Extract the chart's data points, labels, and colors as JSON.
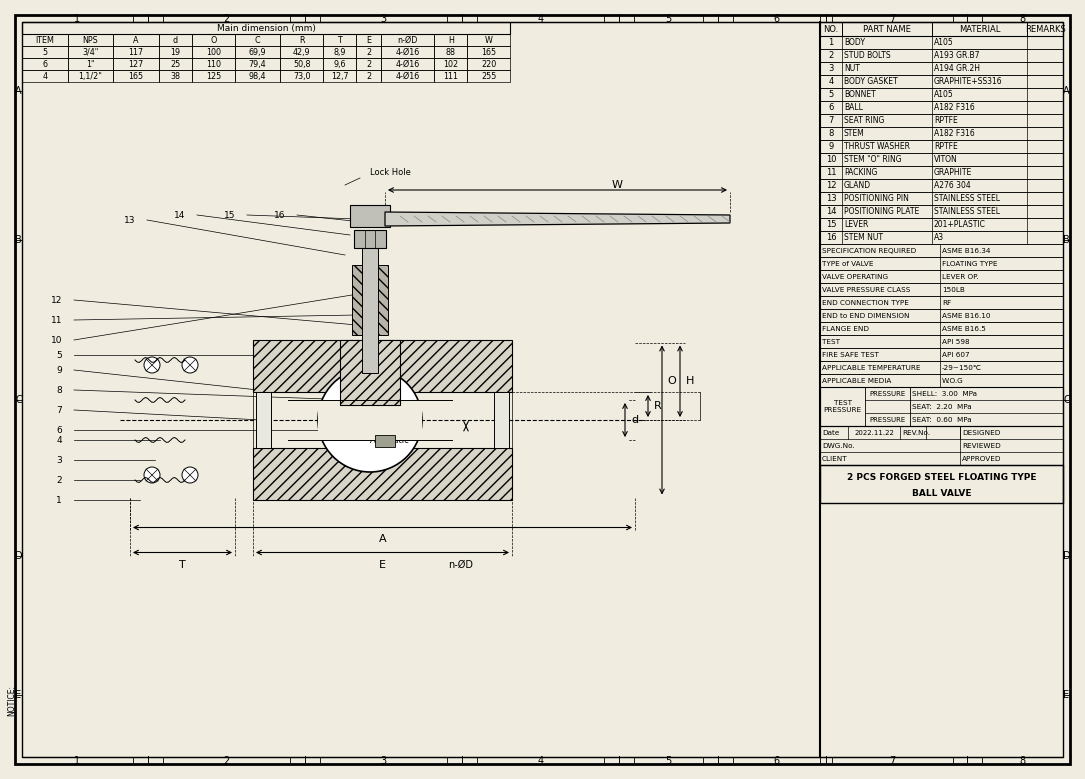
{
  "bg_color": "#f0ede0",
  "line_color": "#000000",
  "dim_table_rows": [
    [
      "5",
      "3/4\"",
      "117",
      "19",
      "100",
      "69,9",
      "42,9",
      "8,9",
      "2",
      "4-Ø16",
      "88",
      "165"
    ],
    [
      "6",
      "1\"",
      "127",
      "25",
      "110",
      "79,4",
      "50,8",
      "9,6",
      "2",
      "4-Ø16",
      "102",
      "220"
    ],
    [
      "4",
      "1,1/2\"",
      "165",
      "38",
      "125",
      "98,4",
      "73,0",
      "12,7",
      "2",
      "4-Ø16",
      "111",
      "255"
    ]
  ],
  "parts_table_rows": [
    [
      "1",
      "BODY",
      "A105"
    ],
    [
      "2",
      "STUD BOLTS",
      "A193 GR.B7"
    ],
    [
      "3",
      "NUT",
      "A194 GR.2H"
    ],
    [
      "4",
      "BODY GASKET",
      "GRAPHITE+SS316"
    ],
    [
      "5",
      "BONNET",
      "A105"
    ],
    [
      "6",
      "BALL",
      "A182 F316"
    ],
    [
      "7",
      "SEAT RING",
      "RPTFE"
    ],
    [
      "8",
      "STEM",
      "A182 F316"
    ],
    [
      "9",
      "THRUST WASHER",
      "RPTFE"
    ],
    [
      "10",
      "STEM \"O\" RING",
      "VITON"
    ],
    [
      "11",
      "PACKING",
      "GRAPHITE"
    ],
    [
      "12",
      "GLAND",
      "A276 304"
    ],
    [
      "13",
      "POSITIONING PIN",
      "STAINLESS STEEL"
    ],
    [
      "14",
      "POSITIONING PLATE",
      "STAINLESS STEEL"
    ],
    [
      "15",
      "LEVER",
      "201+PLASTIC"
    ],
    [
      "16",
      "STEM NUT",
      "A3"
    ]
  ],
  "spec_table_rows": [
    [
      "SPECIFICATION REQUIRED",
      "ASME B16.34"
    ],
    [
      "TYPE of VALVE",
      "FLOATING TYPE"
    ],
    [
      "VALVE OPERATING",
      "LEVER OP."
    ],
    [
      "VALVE PRESSURE CLASS",
      "150LB"
    ],
    [
      "END CONNECTION TYPE",
      "RF"
    ],
    [
      "END to END DIMENSION",
      "ASME B16.10"
    ],
    [
      "FLANGE END",
      "ASME B16.5"
    ],
    [
      "TEST",
      "API 598"
    ],
    [
      "FIRE SAFE TEST",
      "API 607"
    ],
    [
      "APPLICABLE TEMPERATURE",
      "-29~150℃"
    ],
    [
      "APPLICABLE MEDIA",
      "W.O.G"
    ]
  ]
}
